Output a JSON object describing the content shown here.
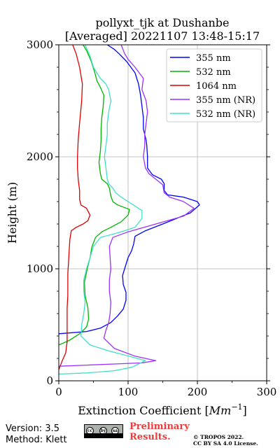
{
  "chart_data": {
    "type": "line",
    "title_line1": "pollyxt_tjk at Dushanbe",
    "title_line2": "[Averaged] 20221107 13:48-15:17",
    "xlabel": "Extinction Coefficient [",
    "xlabel_unit": "Mm",
    "xlabel_exp": "−1",
    "xlabel_close": "]",
    "ylabel": "Height (m)",
    "xlim": [
      0,
      300
    ],
    "ylim": [
      0,
      3000
    ],
    "xticks": [
      0,
      100,
      200,
      300
    ],
    "yticks": [
      0,
      1000,
      2000,
      3000
    ],
    "grid": true,
    "legend_position": "top-right",
    "series": [
      {
        "name": "355 nm",
        "color": "#0000ff",
        "points": [
          [
            0,
            420
          ],
          [
            40,
            440
          ],
          [
            60,
            470
          ],
          [
            75,
            520
          ],
          [
            85,
            580
          ],
          [
            93,
            640
          ],
          [
            97,
            720
          ],
          [
            97,
            790
          ],
          [
            93,
            860
          ],
          [
            92,
            940
          ],
          [
            96,
            1020
          ],
          [
            100,
            1100
          ],
          [
            105,
            1160
          ],
          [
            108,
            1220
          ],
          [
            110,
            1290
          ],
          [
            125,
            1340
          ],
          [
            150,
            1400
          ],
          [
            170,
            1450
          ],
          [
            190,
            1500
          ],
          [
            203,
            1570
          ],
          [
            200,
            1600
          ],
          [
            180,
            1640
          ],
          [
            157,
            1660
          ],
          [
            152,
            1700
          ],
          [
            152,
            1760
          ],
          [
            148,
            1800
          ],
          [
            135,
            1840
          ],
          [
            128,
            1900
          ],
          [
            128,
            2000
          ],
          [
            127,
            2100
          ],
          [
            126,
            2150
          ],
          [
            122,
            2250
          ],
          [
            122,
            2350
          ],
          [
            120,
            2450
          ],
          [
            118,
            2550
          ],
          [
            115,
            2650
          ],
          [
            110,
            2750
          ],
          [
            98,
            2850
          ],
          [
            87,
            2920
          ],
          [
            80,
            2960
          ],
          [
            70,
            3000
          ]
        ]
      },
      {
        "name": "532 nm",
        "color": "#00b400",
        "points": [
          [
            0,
            320
          ],
          [
            15,
            360
          ],
          [
            30,
            420
          ],
          [
            40,
            480
          ],
          [
            43,
            550
          ],
          [
            42,
            650
          ],
          [
            38,
            760
          ],
          [
            37,
            880
          ],
          [
            41,
            1000
          ],
          [
            45,
            1100
          ],
          [
            48,
            1200
          ],
          [
            53,
            1280
          ],
          [
            62,
            1330
          ],
          [
            75,
            1370
          ],
          [
            90,
            1420
          ],
          [
            100,
            1480
          ],
          [
            102,
            1530
          ],
          [
            85,
            1570
          ],
          [
            78,
            1600
          ],
          [
            75,
            1650
          ],
          [
            73,
            1720
          ],
          [
            70,
            1760
          ],
          [
            62,
            1800
          ],
          [
            60,
            1850
          ],
          [
            58,
            1950
          ],
          [
            60,
            2050
          ],
          [
            61,
            2150
          ],
          [
            61,
            2250
          ],
          [
            62,
            2350
          ],
          [
            64,
            2450
          ],
          [
            65,
            2550
          ],
          [
            60,
            2620
          ],
          [
            55,
            2680
          ],
          [
            52,
            2750
          ],
          [
            47,
            2850
          ],
          [
            40,
            2950
          ],
          [
            35,
            3000
          ]
        ]
      },
      {
        "name": "1064 nm",
        "color": "#dc0000",
        "points": [
          [
            0,
            100
          ],
          [
            5,
            180
          ],
          [
            10,
            250
          ],
          [
            12,
            350
          ],
          [
            12,
            450
          ],
          [
            12,
            550
          ],
          [
            12,
            650
          ],
          [
            13,
            760
          ],
          [
            13,
            860
          ],
          [
            13,
            960
          ],
          [
            14,
            1060
          ],
          [
            15,
            1160
          ],
          [
            16,
            1260
          ],
          [
            18,
            1340
          ],
          [
            25,
            1370
          ],
          [
            35,
            1400
          ],
          [
            42,
            1430
          ],
          [
            45,
            1480
          ],
          [
            40,
            1540
          ],
          [
            32,
            1570
          ],
          [
            30,
            1620
          ],
          [
            30,
            1700
          ],
          [
            28,
            1800
          ],
          [
            27,
            1900
          ],
          [
            27,
            2000
          ],
          [
            28,
            2150
          ],
          [
            30,
            2300
          ],
          [
            33,
            2500
          ],
          [
            34,
            2650
          ],
          [
            30,
            2800
          ],
          [
            25,
            2920
          ],
          [
            20,
            3000
          ]
        ]
      },
      {
        "name": "355 nm (NR)",
        "color": "#9b30ff",
        "points": [
          [
            0,
            130
          ],
          [
            40,
            140
          ],
          [
            80,
            150
          ],
          [
            120,
            160
          ],
          [
            140,
            180
          ],
          [
            110,
            220
          ],
          [
            80,
            290
          ],
          [
            65,
            380
          ],
          [
            68,
            450
          ],
          [
            72,
            520
          ],
          [
            74,
            600
          ],
          [
            75,
            700
          ],
          [
            73,
            800
          ],
          [
            73,
            900
          ],
          [
            75,
            1000
          ],
          [
            74,
            1100
          ],
          [
            73,
            1200
          ],
          [
            78,
            1280
          ],
          [
            100,
            1330
          ],
          [
            140,
            1400
          ],
          [
            180,
            1470
          ],
          [
            195,
            1540
          ],
          [
            180,
            1600
          ],
          [
            160,
            1640
          ],
          [
            152,
            1680
          ],
          [
            150,
            1750
          ],
          [
            140,
            1800
          ],
          [
            130,
            1850
          ],
          [
            125,
            1900
          ],
          [
            122,
            2000
          ],
          [
            124,
            2100
          ],
          [
            124,
            2200
          ],
          [
            126,
            2300
          ],
          [
            128,
            2400
          ],
          [
            126,
            2500
          ],
          [
            120,
            2600
          ],
          [
            122,
            2700
          ],
          [
            110,
            2800
          ],
          [
            100,
            2870
          ],
          [
            95,
            2920
          ],
          [
            90,
            3000
          ]
        ]
      },
      {
        "name": "532 nm (NR)",
        "color": "#40e0c8",
        "points": [
          [
            0,
            60
          ],
          [
            40,
            70
          ],
          [
            80,
            90
          ],
          [
            105,
            120
          ],
          [
            125,
            180
          ],
          [
            95,
            230
          ],
          [
            70,
            270
          ],
          [
            45,
            320
          ],
          [
            32,
            400
          ],
          [
            33,
            500
          ],
          [
            36,
            600
          ],
          [
            38,
            700
          ],
          [
            36,
            800
          ],
          [
            36,
            900
          ],
          [
            40,
            1000
          ],
          [
            45,
            1100
          ],
          [
            50,
            1200
          ],
          [
            60,
            1280
          ],
          [
            85,
            1320
          ],
          [
            110,
            1370
          ],
          [
            120,
            1450
          ],
          [
            120,
            1520
          ],
          [
            110,
            1560
          ],
          [
            100,
            1600
          ],
          [
            90,
            1640
          ],
          [
            82,
            1680
          ],
          [
            78,
            1720
          ],
          [
            72,
            1760
          ],
          [
            70,
            1800
          ],
          [
            68,
            1900
          ],
          [
            66,
            2000
          ],
          [
            68,
            2100
          ],
          [
            70,
            2200
          ],
          [
            70,
            2300
          ],
          [
            72,
            2400
          ],
          [
            75,
            2500
          ],
          [
            72,
            2600
          ],
          [
            68,
            2650
          ],
          [
            60,
            2700
          ],
          [
            50,
            2800
          ],
          [
            45,
            2900
          ],
          [
            38,
            3000
          ]
        ]
      }
    ]
  },
  "footer": {
    "version": "Version: 3.5",
    "method": "Method: Klett",
    "prelim_line1": "Preliminary",
    "prelim_line2": "Results.",
    "copyright_line1": "© TROPOS 2022.",
    "copyright_line2": "CC BY SA 4.0 License.",
    "license_badge_text": [
      "cc",
      "by",
      "sa"
    ]
  }
}
